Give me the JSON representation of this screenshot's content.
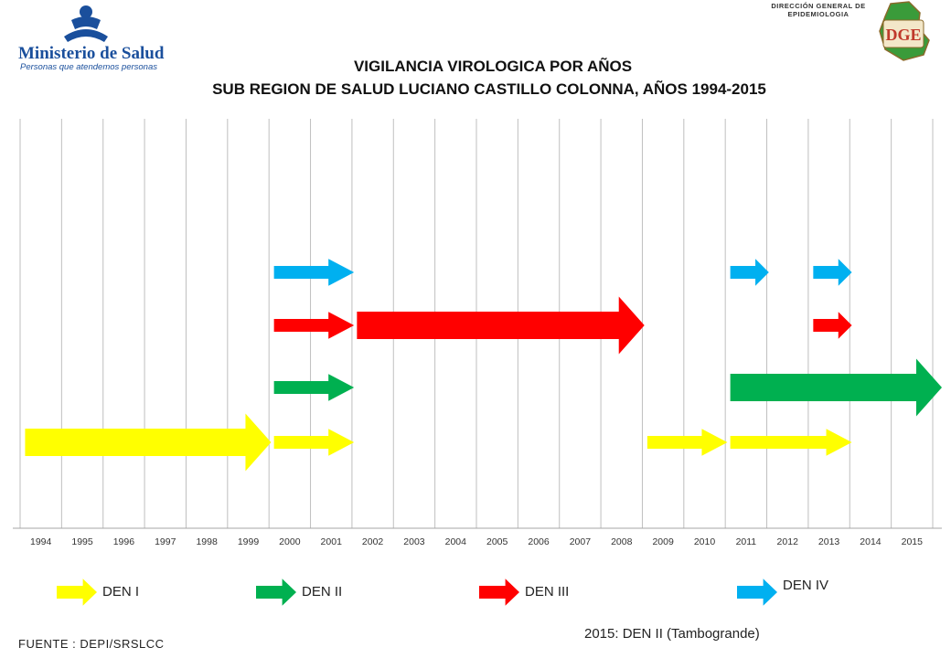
{
  "header": {
    "logo_name": "Ministerio de Salud",
    "logo_tagline": "Personas que atendemos personas",
    "dge_caption": "DIRECCIÓN GENERAL DE EPIDEMIOLOGIA",
    "dge_mark": "DGE"
  },
  "chart_data": {
    "type": "timeline",
    "title": "VIGILANCIA VIROLOGICA POR AÑOS",
    "subtitle": "SUB REGION DE SALUD LUCIANO CASTILLO COLONNA, AÑOS 1994-2015",
    "x": [
      "1994",
      "1995",
      "1996",
      "1997",
      "1998",
      "1999",
      "2000",
      "2001",
      "2002",
      "2003",
      "2004",
      "2005",
      "2006",
      "2007",
      "2008",
      "2009",
      "2010",
      "2011",
      "2012",
      "2013",
      "2014",
      "2015"
    ],
    "series": [
      {
        "name": "DEN I",
        "color": "#ffff00",
        "periods": [
          [
            "1994",
            "1999"
          ],
          [
            "2000",
            "2001"
          ],
          [
            "2009",
            "2010"
          ],
          [
            "2011",
            "2013"
          ]
        ]
      },
      {
        "name": "DEN II",
        "color": "#00b050",
        "periods": [
          [
            "2000",
            "2001"
          ],
          [
            "2011",
            "2015"
          ]
        ]
      },
      {
        "name": "DEN III",
        "color": "#ff0000",
        "periods": [
          [
            "2000",
            "2001"
          ],
          [
            "2002",
            "2008"
          ],
          [
            "2013",
            "2013"
          ]
        ]
      },
      {
        "name": "DEN IV",
        "color": "#00b0f0",
        "periods": [
          [
            "2000",
            "2001"
          ],
          [
            "2011",
            "2011"
          ],
          [
            "2013",
            "2013"
          ]
        ]
      }
    ],
    "annotation": "2015: DEN II (Tambogrande)",
    "source": "FUENTE : DEPI/SRSLCC"
  }
}
